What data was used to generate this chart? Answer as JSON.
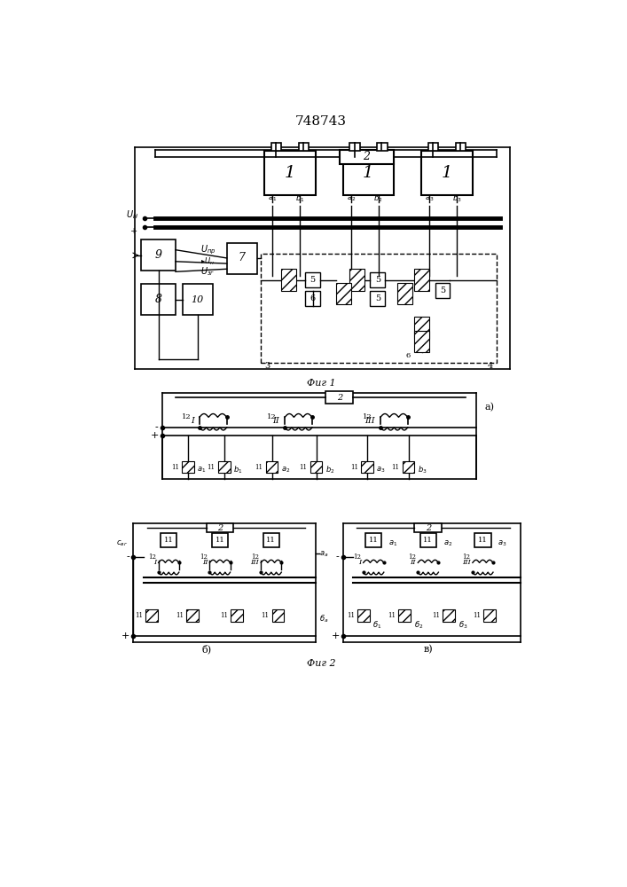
{
  "title": "748743",
  "fig1_label": "Фиг 1",
  "fig2_label": "Фиг 2",
  "bg_color": "#ffffff",
  "line_color": "#000000"
}
